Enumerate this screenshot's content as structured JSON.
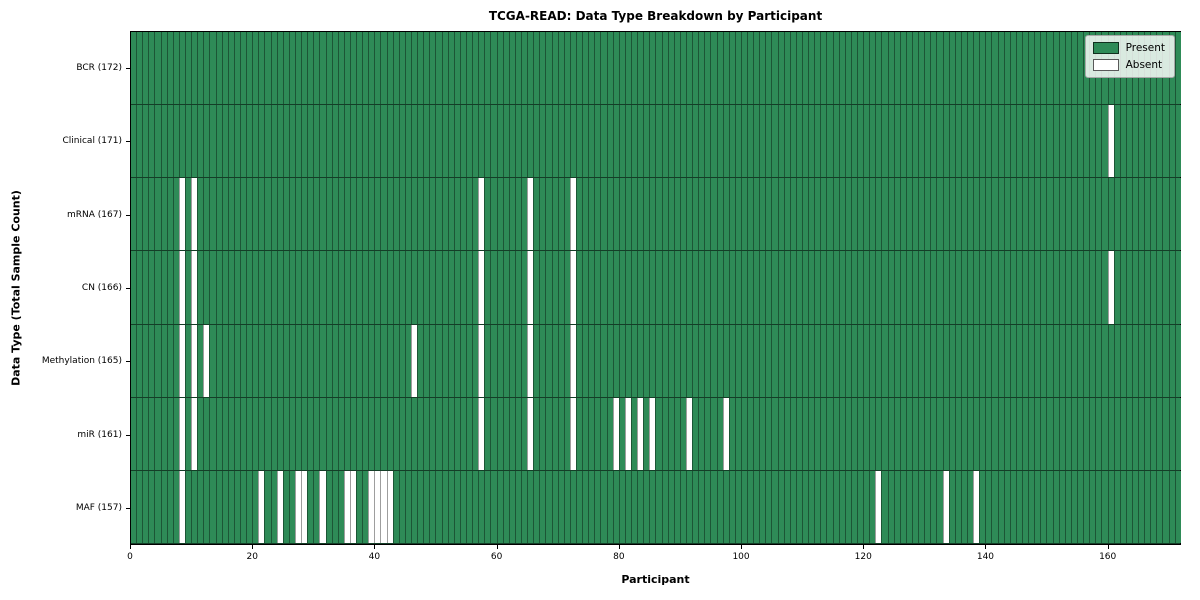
{
  "title": "TCGA-READ: Data Type Breakdown by Participant",
  "legend": {
    "present_label": "Present",
    "absent_label": "Absent",
    "position": "upper-right"
  },
  "chart_data": {
    "type": "heatmap",
    "title": "TCGA-READ: Data Type Breakdown by Participant",
    "xlabel": "Participant",
    "ylabel": "Data Type (Total Sample Count)",
    "n_participants": 172,
    "x_range": [
      0,
      172
    ],
    "x_ticks": [
      0,
      20,
      40,
      60,
      80,
      100,
      120,
      140,
      160
    ],
    "grid": "cell-borders",
    "legend_position": "upper-right",
    "colors": {
      "present": "#2e8b57",
      "absent": "#ffffff",
      "cell_border": "rgba(0,0,0,0.38)",
      "row_border": "rgba(0,0,0,0.55)",
      "axis": "#000000"
    },
    "rows": [
      {
        "label": "BCR (172)",
        "data_type": "BCR",
        "present_count": 172,
        "absent_participants": []
      },
      {
        "label": "Clinical (171)",
        "data_type": "Clinical",
        "present_count": 171,
        "absent_participants": [
          160
        ]
      },
      {
        "label": "mRNA (167)",
        "data_type": "mRNA",
        "present_count": 167,
        "absent_participants": [
          8,
          10,
          57,
          65,
          72
        ]
      },
      {
        "label": "CN (166)",
        "data_type": "CN",
        "present_count": 166,
        "absent_participants": [
          8,
          10,
          57,
          65,
          72,
          160
        ]
      },
      {
        "label": "Methylation (165)",
        "data_type": "Methylation",
        "present_count": 165,
        "absent_participants": [
          8,
          10,
          12,
          46,
          57,
          65,
          72
        ]
      },
      {
        "label": "miR (161)",
        "data_type": "miR",
        "present_count": 161,
        "absent_participants": [
          8,
          10,
          57,
          65,
          72,
          79,
          81,
          83,
          85,
          91,
          97
        ]
      },
      {
        "label": "MAF (157)",
        "data_type": "MAF",
        "present_count": 157,
        "absent_participants": [
          8,
          21,
          24,
          27,
          28,
          31,
          35,
          36,
          39,
          40,
          41,
          42,
          122,
          133,
          138
        ]
      }
    ]
  }
}
